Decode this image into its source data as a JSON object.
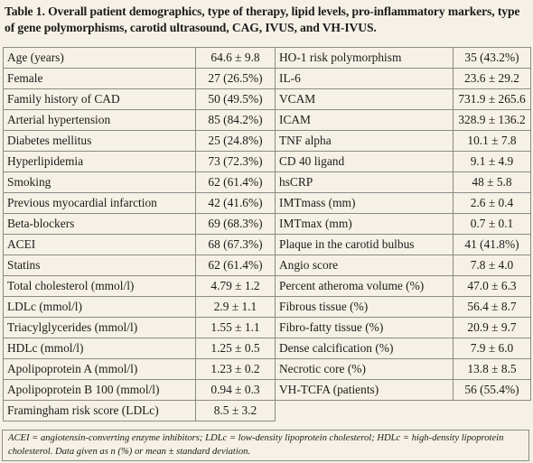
{
  "caption": "Table 1. Overall patient demographics, type of therapy, lipid levels, pro-inflammatory markers, type of gene polymorphisms, carotid ultrasound, CAG, IVUS, and VH-IVUS.",
  "rows": [
    {
      "l_label": "Age (years)",
      "l_value": "64.6 ± 9.8",
      "r_label": "HO-1 risk polymorphism",
      "r_value": "35 (43.2%)"
    },
    {
      "l_label": "Female",
      "l_value": "27 (26.5%)",
      "r_label": "IL-6",
      "r_value": "23.6 ± 29.2"
    },
    {
      "l_label": "Family history of CAD",
      "l_value": "50 (49.5%)",
      "r_label": "VCAM",
      "r_value": "731.9 ± 265.6"
    },
    {
      "l_label": "Arterial hypertension",
      "l_value": "85 (84.2%)",
      "r_label": "ICAM",
      "r_value": "328.9 ± 136.2"
    },
    {
      "l_label": "Diabetes mellitus",
      "l_value": "25 (24.8%)",
      "r_label": "TNF alpha",
      "r_value": "10.1 ± 7.8"
    },
    {
      "l_label": "Hyperlipidemia",
      "l_value": "73 (72.3%)",
      "r_label": "CD 40 ligand",
      "r_value": "9.1 ± 4.9"
    },
    {
      "l_label": "Smoking",
      "l_value": "62 (61.4%)",
      "r_label": "hsCRP",
      "r_value": "48 ± 5.8"
    },
    {
      "l_label": "Previous myocardial infarction",
      "l_value": "42 (41.6%)",
      "r_label": "IMTmass (mm)",
      "r_value": "2.6 ± 0.4"
    },
    {
      "l_label": "Beta-blockers",
      "l_value": "69 (68.3%)",
      "r_label": "IMTmax (mm)",
      "r_value": "0.7 ± 0.1"
    },
    {
      "l_label": "ACEI",
      "l_value": "68 (67.3%)",
      "r_label": "Plaque in the carotid bulbus",
      "r_value": "41 (41.8%)"
    },
    {
      "l_label": "Statins",
      "l_value": "62 (61.4%)",
      "r_label": "Angio score",
      "r_value": "7.8 ± 4.0"
    },
    {
      "l_label": "Total cholesterol (mmol/l)",
      "l_value": "4.79 ± 1.2",
      "r_label": "Percent atheroma volume (%)",
      "r_value": "47.0 ± 6.3"
    },
    {
      "l_label": "LDLc (mmol/l)",
      "l_value": "2.9 ± 1.1",
      "r_label": "Fibrous tissue (%)",
      "r_value": "56.4 ± 8.7"
    },
    {
      "l_label": "Triacylglycerides (mmol/l)",
      "l_value": "1.55 ± 1.1",
      "r_label": "Fibro-fatty tissue (%)",
      "r_value": "20.9 ± 9.7"
    },
    {
      "l_label": "HDLc (mmol/l)",
      "l_value": "1.25 ± 0.5",
      "r_label": "Dense calcification (%)",
      "r_value": "7.9 ± 6.0"
    },
    {
      "l_label": "Apolipoprotein A (mmol/l)",
      "l_value": "1.23 ± 0.2",
      "r_label": "Necrotic core (%)",
      "r_value": "13.8 ± 8.5"
    },
    {
      "l_label": "Apolipoprotein B 100 (mmol/l)",
      "l_value": "0.94 ± 0.3",
      "r_label": "VH-TCFA  (patients)",
      "r_value": "56 (55.4%)"
    },
    {
      "l_label": "Framingham risk score (LDLc)",
      "l_value": "8.5 ± 3.2",
      "r_label": "",
      "r_value": ""
    }
  ],
  "footnote": "ACEI = angiotensin-converting enzyme inhibitors; LDLc = low-density lipoprotein cholesterol; HDLc = high-density lipoprotein cholesterol. Data given as n (%) or mean ± standard deviation."
}
